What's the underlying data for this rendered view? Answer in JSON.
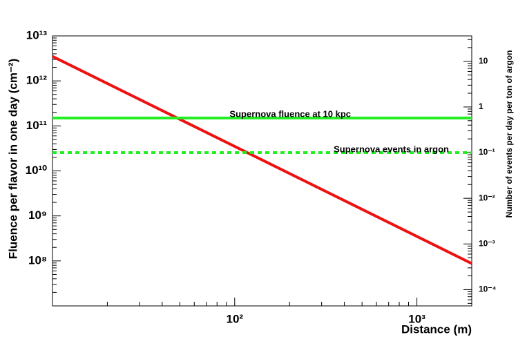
{
  "chart_data": {
    "type": "line",
    "x_label": "Distance (m)",
    "y_label": "Fluence per flavor in one day (cm⁻²)",
    "y2_label": "Number of events per day per ton of argon",
    "annotations": [
      "Supernova fluence at 10 kpc",
      "Supernova events in argon"
    ],
    "log_x": true,
    "log_y": true,
    "log_y2": true,
    "xlim": [
      10,
      2000
    ],
    "xticks": [
      {
        "value": 100,
        "label": "10²"
      },
      {
        "value": 1000,
        "label": "10³"
      }
    ],
    "ylim": [
      10000000,
      10000000000000
    ],
    "yticks": [
      {
        "value": 100000000,
        "label": "10⁸"
      },
      {
        "value": 1000000000,
        "label": "10⁹"
      },
      {
        "value": 10000000000,
        "label": "10¹⁰"
      },
      {
        "value": 100000000000,
        "label": "10¹¹"
      },
      {
        "value": 1000000000000,
        "label": "10¹²"
      },
      {
        "value": 10000000000000,
        "label": "10¹³"
      }
    ],
    "y2lim": [
      4.4e-05,
      36
    ],
    "y2ticks": [
      10,
      1,
      {
        "value": 0.1,
        "label": "10⁻¹"
      },
      {
        "value": 0.01,
        "label": "10⁻²"
      },
      {
        "value": 0.001,
        "label": "10⁻³"
      },
      {
        "value": 0.0001,
        "label": "10⁻⁴"
      }
    ],
    "series": [
      {
        "color": "#ee1111",
        "style": "solid",
        "x": [
          10,
          2000
        ],
        "values": [
          3500000000000,
          87500000
        ]
      },
      {
        "color": "#22ee22",
        "style": "solid",
        "x": [
          10,
          2000
        ],
        "values": [
          150000000000,
          150000000000
        ]
      },
      {
        "color": "#22ee22",
        "style": "dashed",
        "axis": "y2",
        "x": [
          10,
          2000
        ],
        "values": [
          0.1,
          0.1
        ]
      }
    ]
  }
}
